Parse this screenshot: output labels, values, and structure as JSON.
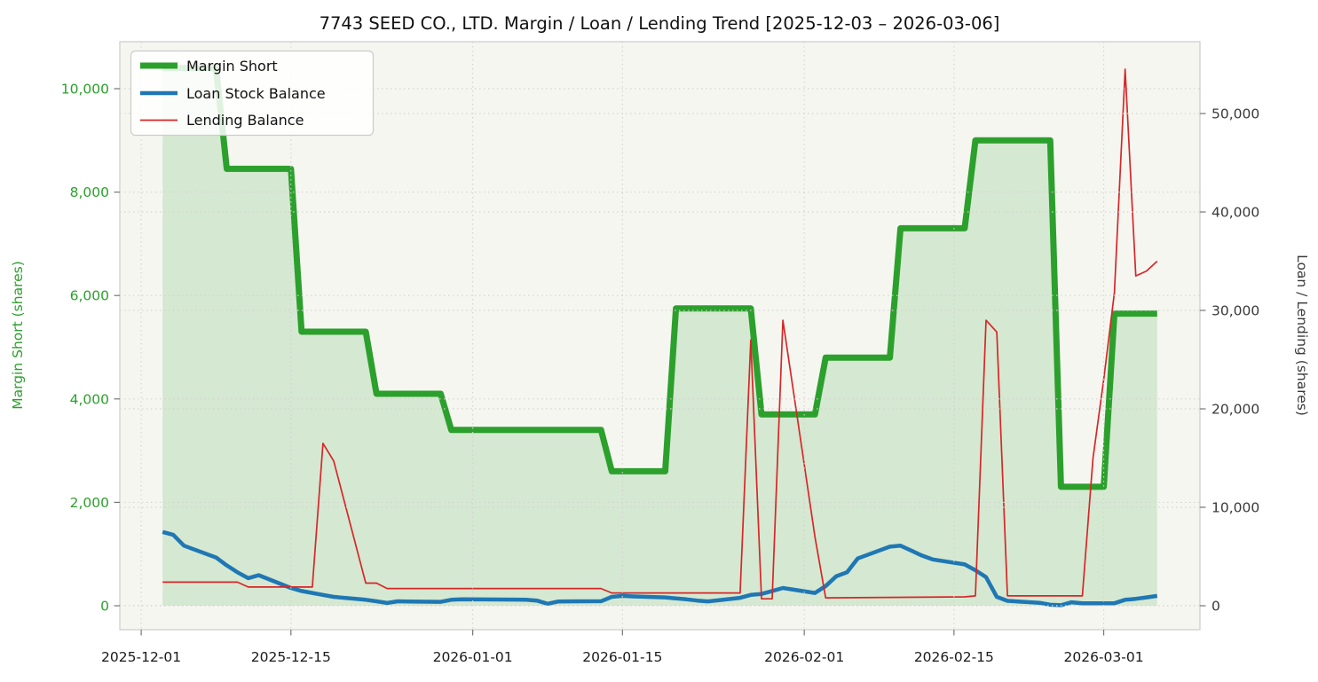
{
  "title": "7743 SEED CO., LTD. Margin / Loan / Lending Trend [2025-12-03 – 2026-03-06]",
  "legend": {
    "items": [
      "Margin Short",
      "Loan Stock Balance",
      "Lending Balance"
    ]
  },
  "colors": {
    "margin_line": "#2ca02c",
    "margin_fill": "rgba(44,160,44,0.16)",
    "loan_line": "#1f77b4",
    "lending_line": "#d62728",
    "left_axis_text": "#2ca02c",
    "right_axis_text": "#3a3a3a",
    "x_axis_text": "#1a1a1a",
    "grid": "#d2d2d2",
    "plot_bg": "#f6f6f1",
    "spine": "#cfcfcf",
    "tick": "#767676",
    "legend_border": "#cccccc"
  },
  "chart_data": {
    "type": "line",
    "title": "7743 SEED CO., LTD. Margin / Loan / Lending Trend [2025-12-03 – 2026-03-06]",
    "x_axis": {
      "range": [
        "2025-11-29",
        "2026-03-10"
      ],
      "ticks": [
        "2025-12-01",
        "2025-12-15",
        "2026-01-01",
        "2026-01-15",
        "2026-02-01",
        "2026-02-15",
        "2026-03-01"
      ],
      "tick_labels": [
        "2025-12-01",
        "2025-12-15",
        "2026-01-01",
        "2026-01-15",
        "2026-02-01",
        "2026-02-15",
        "2026-03-01"
      ]
    },
    "y_left": {
      "label": "Margin Short (shares)",
      "range": [
        -463,
        10909
      ],
      "ticks": [
        0,
        2000,
        4000,
        6000,
        8000,
        10000
      ],
      "tick_labels": [
        "0",
        "2,000",
        "4,000",
        "6,000",
        "8,000",
        "10,000"
      ]
    },
    "y_right": {
      "label": "Loan / Lending (shares)",
      "range": [
        -2432,
        57297
      ],
      "ticks": [
        0,
        10000,
        20000,
        30000,
        40000,
        50000
      ],
      "tick_labels": [
        "0",
        "10,000",
        "20,000",
        "30,000",
        "40,000",
        "50,000"
      ]
    },
    "grid": "dotted, both axes, drawn over series",
    "legend_position": "upper left",
    "series": [
      {
        "name": "Margin Short",
        "axis": "left",
        "style": "thick-step",
        "color": "#2ca02c",
        "fill_to_zero": true,
        "points": [
          [
            "2025-12-03",
            10400
          ],
          [
            "2025-12-08",
            10400
          ],
          [
            "2025-12-09",
            8450
          ],
          [
            "2025-12-15",
            8450
          ],
          [
            "2025-12-16",
            5300
          ],
          [
            "2025-12-22",
            5300
          ],
          [
            "2025-12-23",
            4100
          ],
          [
            "2025-12-29",
            4100
          ],
          [
            "2025-12-30",
            3400
          ],
          [
            "2026-01-13",
            3400
          ],
          [
            "2026-01-14",
            2600
          ],
          [
            "2026-01-19",
            2600
          ],
          [
            "2026-01-20",
            5750
          ],
          [
            "2026-01-27",
            5750
          ],
          [
            "2026-01-28",
            3700
          ],
          [
            "2026-02-02",
            3700
          ],
          [
            "2026-02-03",
            4800
          ],
          [
            "2026-02-09",
            4800
          ],
          [
            "2026-02-10",
            7300
          ],
          [
            "2026-02-16",
            7300
          ],
          [
            "2026-02-17",
            9000
          ],
          [
            "2026-02-24",
            9000
          ],
          [
            "2026-02-25",
            2300
          ],
          [
            "2026-03-01",
            2300
          ],
          [
            "2026-03-02",
            5650
          ],
          [
            "2026-03-06",
            5650
          ]
        ]
      },
      {
        "name": "Loan Stock Balance",
        "axis": "right",
        "style": "medium-line",
        "color": "#1f77b4",
        "points": [
          [
            "2025-12-03",
            7500
          ],
          [
            "2025-12-04",
            7200
          ],
          [
            "2025-12-05",
            6100
          ],
          [
            "2025-12-08",
            4900
          ],
          [
            "2025-12-09",
            4100
          ],
          [
            "2025-12-10",
            3400
          ],
          [
            "2025-12-11",
            2800
          ],
          [
            "2025-12-12",
            3100
          ],
          [
            "2025-12-15",
            1800
          ],
          [
            "2025-12-16",
            1500
          ],
          [
            "2025-12-17",
            1300
          ],
          [
            "2025-12-18",
            1100
          ],
          [
            "2025-12-19",
            900
          ],
          [
            "2025-12-22",
            600
          ],
          [
            "2025-12-23",
            450
          ],
          [
            "2025-12-24",
            280
          ],
          [
            "2025-12-25",
            450
          ],
          [
            "2025-12-26",
            420
          ],
          [
            "2025-12-29",
            400
          ],
          [
            "2025-12-30",
            600
          ],
          [
            "2025-12-31",
            650
          ],
          [
            "2026-01-02",
            640
          ],
          [
            "2026-01-05",
            620
          ],
          [
            "2026-01-06",
            600
          ],
          [
            "2026-01-07",
            520
          ],
          [
            "2026-01-08",
            200
          ],
          [
            "2026-01-09",
            430
          ],
          [
            "2026-01-13",
            460
          ],
          [
            "2026-01-14",
            900
          ],
          [
            "2026-01-15",
            1000
          ],
          [
            "2026-01-16",
            950
          ],
          [
            "2026-01-19",
            850
          ],
          [
            "2026-01-20",
            750
          ],
          [
            "2026-01-21",
            650
          ],
          [
            "2026-01-22",
            520
          ],
          [
            "2026-01-23",
            440
          ],
          [
            "2026-01-26",
            800
          ],
          [
            "2026-01-27",
            1100
          ],
          [
            "2026-01-28",
            1200
          ],
          [
            "2026-01-29",
            1500
          ],
          [
            "2026-01-30",
            1800
          ],
          [
            "2026-02-02",
            1300
          ],
          [
            "2026-02-03",
            2000
          ],
          [
            "2026-02-04",
            3000
          ],
          [
            "2026-02-05",
            3400
          ],
          [
            "2026-02-06",
            4800
          ],
          [
            "2026-02-09",
            6000
          ],
          [
            "2026-02-10",
            6100
          ],
          [
            "2026-02-11",
            5600
          ],
          [
            "2026-02-12",
            5100
          ],
          [
            "2026-02-13",
            4700
          ],
          [
            "2026-02-16",
            4200
          ],
          [
            "2026-02-17",
            3600
          ],
          [
            "2026-02-18",
            2900
          ],
          [
            "2026-02-19",
            900
          ],
          [
            "2026-02-20",
            500
          ],
          [
            "2026-02-23",
            300
          ],
          [
            "2026-02-24",
            100
          ],
          [
            "2026-02-25",
            50
          ],
          [
            "2026-02-26",
            350
          ],
          [
            "2026-02-27",
            250
          ],
          [
            "2026-03-02",
            250
          ],
          [
            "2026-03-03",
            600
          ],
          [
            "2026-03-04",
            700
          ],
          [
            "2026-03-05",
            850
          ],
          [
            "2026-03-06",
            1000
          ]
        ]
      },
      {
        "name": "Lending Balance",
        "axis": "right",
        "style": "thin-line",
        "color": "#d62728",
        "points": [
          [
            "2025-12-03",
            2400
          ],
          [
            "2025-12-10",
            2400
          ],
          [
            "2025-12-11",
            1900
          ],
          [
            "2025-12-17",
            1900
          ],
          [
            "2025-12-18",
            16500
          ],
          [
            "2025-12-19",
            14700
          ],
          [
            "2025-12-22",
            2300
          ],
          [
            "2025-12-23",
            2300
          ],
          [
            "2025-12-24",
            1750
          ],
          [
            "2026-01-13",
            1750
          ],
          [
            "2026-01-14",
            1300
          ],
          [
            "2026-01-26",
            1300
          ],
          [
            "2026-01-27",
            27000
          ],
          [
            "2026-01-28",
            700
          ],
          [
            "2026-01-29",
            700
          ],
          [
            "2026-01-30",
            29000
          ],
          [
            "2026-02-02",
            7000
          ],
          [
            "2026-02-03",
            800
          ],
          [
            "2026-02-16",
            900
          ],
          [
            "2026-02-17",
            1000
          ],
          [
            "2026-02-18",
            29000
          ],
          [
            "2026-02-19",
            27800
          ],
          [
            "2026-02-20",
            1000
          ],
          [
            "2026-02-27",
            1000
          ],
          [
            "2026-02-28",
            15000
          ],
          [
            "2026-03-01",
            23000
          ],
          [
            "2026-03-02",
            31800
          ],
          [
            "2026-03-03",
            54500
          ],
          [
            "2026-03-04",
            33500
          ],
          [
            "2026-03-05",
            34000
          ],
          [
            "2026-03-06",
            35000
          ]
        ]
      }
    ]
  }
}
